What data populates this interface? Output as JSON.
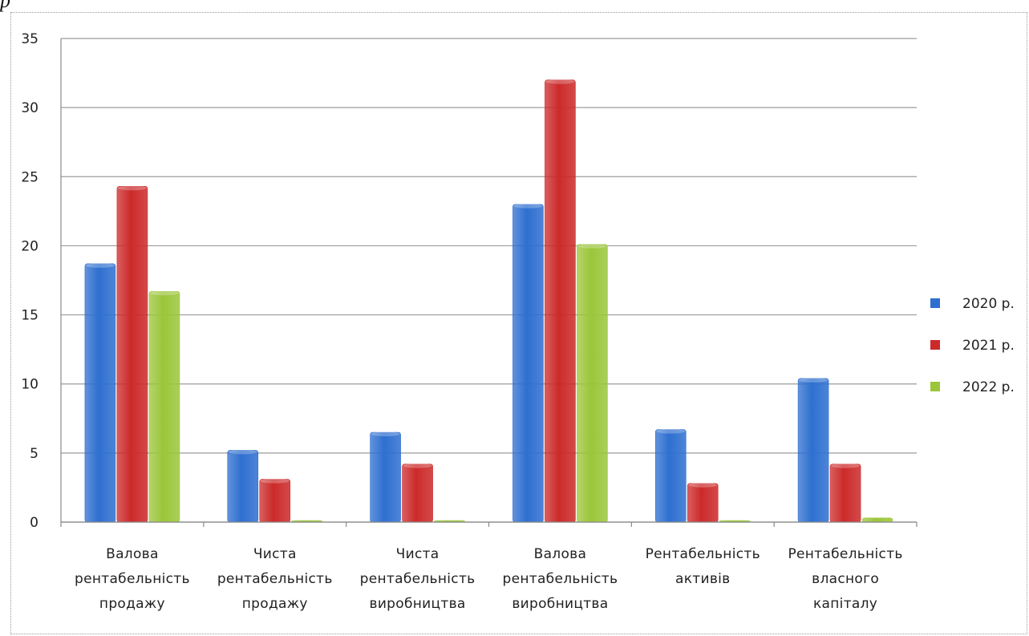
{
  "page_mark": "p",
  "chart_data": {
    "type": "bar",
    "categories": [
      [
        "Валова",
        "рентабельність",
        "продажу"
      ],
      [
        "Чиста",
        "рентабельність",
        "продажу"
      ],
      [
        "Чиста",
        "рентабельність",
        "виробництва"
      ],
      [
        "Валова",
        "рентабельність",
        "виробництва"
      ],
      [
        "Рентабельність",
        "активів"
      ],
      [
        "Рентабельність",
        "власного",
        "капіталу"
      ]
    ],
    "series": [
      {
        "name": "2020 р.",
        "color": "#2e6fd0",
        "values": [
          18.7,
          5.2,
          6.5,
          23.0,
          6.7,
          10.4
        ]
      },
      {
        "name": "2021 р.",
        "color": "#cc2a2a",
        "values": [
          24.3,
          3.1,
          4.2,
          32.0,
          2.8,
          4.2
        ]
      },
      {
        "name": "2022 р.",
        "color": "#9bc63a",
        "values": [
          16.7,
          0.1,
          0.1,
          20.1,
          0.1,
          0.3
        ]
      }
    ],
    "yticks": [
      "0",
      "5",
      "10",
      "15",
      "20",
      "25",
      "30",
      "35"
    ],
    "ylim": [
      0,
      35
    ],
    "grid": true,
    "legend": "right"
  }
}
